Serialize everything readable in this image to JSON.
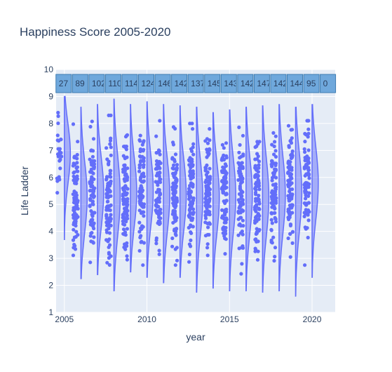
{
  "colors": {
    "plot_bg": "#E5ECF6",
    "grid": "#ffffff",
    "violin_line": "#636EFA",
    "violin_fill": "rgba(99,110,250,0.5)",
    "points": "#636EFA",
    "count_box_fill": "#6FA8DC",
    "count_box_border": "#3E7CB1",
    "text": "#2A3F5F"
  },
  "chart_data": {
    "type": "violin",
    "title": "Happiness Score 2005-2020",
    "xlabel": "year",
    "ylabel": "Life Ladder",
    "xlim": [
      2004.5,
      2021.4
    ],
    "ylim": [
      1,
      10
    ],
    "x_ticks": [
      "2005",
      "2010",
      "2015",
      "2020"
    ],
    "y_ticks": [
      "1",
      "2",
      "3",
      "4",
      "5",
      "6",
      "7",
      "8",
      "9",
      "10"
    ],
    "grid": true,
    "years": [
      2005,
      2006,
      2007,
      2008,
      2009,
      2010,
      2011,
      2012,
      2013,
      2014,
      2015,
      2016,
      2017,
      2018,
      2019,
      2020
    ],
    "count_labels": [
      "27",
      "89",
      "102",
      "110",
      "114",
      "124",
      "146",
      "142",
      "137",
      "145",
      "143",
      "142",
      "147",
      "142",
      "144",
      "95",
      "0"
    ],
    "count_label_years": [
      2005,
      2006,
      2007,
      2008,
      2009,
      2010,
      2011,
      2012,
      2013,
      2014,
      2015,
      2016,
      2017,
      2018,
      2019,
      2020,
      2021
    ],
    "ranges": [
      {
        "year": 2005,
        "min": 3.7,
        "max": 9.0,
        "median": 7.1
      },
      {
        "year": 2006,
        "min": 2.25,
        "max": 8.6,
        "median": 5.2
      },
      {
        "year": 2007,
        "min": 2.4,
        "max": 8.7,
        "median": 5.4
      },
      {
        "year": 2008,
        "min": 1.8,
        "max": 8.9,
        "median": 5.3
      },
      {
        "year": 2009,
        "min": 2.5,
        "max": 8.7,
        "median": 5.4
      },
      {
        "year": 2010,
        "min": 2.3,
        "max": 8.8,
        "median": 5.5
      },
      {
        "year": 2011,
        "min": 2.1,
        "max": 8.7,
        "median": 5.3
      },
      {
        "year": 2012,
        "min": 2.3,
        "max": 8.65,
        "median": 5.3
      },
      {
        "year": 2013,
        "min": 1.75,
        "max": 8.6,
        "median": 5.3
      },
      {
        "year": 2014,
        "min": 1.9,
        "max": 8.4,
        "median": 5.3
      },
      {
        "year": 2015,
        "min": 1.8,
        "max": 8.5,
        "median": 5.4
      },
      {
        "year": 2016,
        "min": 1.8,
        "max": 8.6,
        "median": 5.4
      },
      {
        "year": 2017,
        "min": 1.75,
        "max": 8.65,
        "median": 5.3
      },
      {
        "year": 2018,
        "min": 1.8,
        "max": 8.7,
        "median": 5.4
      },
      {
        "year": 2019,
        "min": 1.6,
        "max": 8.6,
        "median": 5.6
      },
      {
        "year": 2020,
        "min": 2.3,
        "max": 8.7,
        "median": 5.9
      }
    ]
  }
}
